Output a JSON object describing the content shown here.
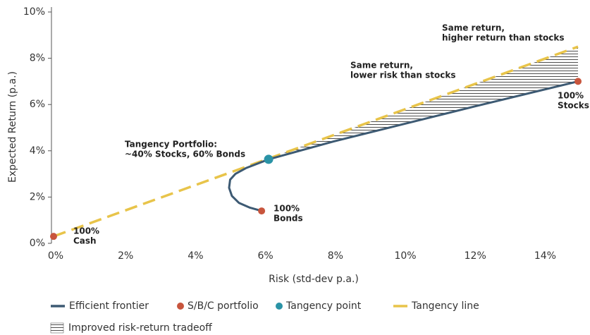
{
  "chart_data": {
    "type": "line",
    "xlabel": "Risk (std-dev p.a.)",
    "ylabel": "Expected Return (p.a.)",
    "xlim": [
      0,
      15
    ],
    "ylim": [
      0,
      10
    ],
    "xticks": [
      {
        "value": 0,
        "label": "0%"
      },
      {
        "value": 2,
        "label": "2%"
      },
      {
        "value": 4,
        "label": "4%"
      },
      {
        "value": 6,
        "label": "6%"
      },
      {
        "value": 8,
        "label": "8%"
      },
      {
        "value": 10,
        "label": "10%"
      },
      {
        "value": 12,
        "label": "12%"
      },
      {
        "value": 14,
        "label": "14%"
      }
    ],
    "yticks": [
      {
        "value": 0,
        "label": "0%"
      },
      {
        "value": 2,
        "label": "2%"
      },
      {
        "value": 4,
        "label": "4%"
      },
      {
        "value": 6,
        "label": "6%"
      },
      {
        "value": 8,
        "label": "8%"
      },
      {
        "value": 10,
        "label": "10%"
      }
    ],
    "series": [
      {
        "name": "Efficient frontier",
        "kind": "line",
        "color": "#3d5a73",
        "x": [
          5.95,
          5.6,
          5.3,
          5.1,
          5.02,
          5.05,
          5.2,
          5.5,
          6.15,
          8,
          10,
          12,
          15
        ],
        "values": [
          1.4,
          1.55,
          1.75,
          2.05,
          2.4,
          2.75,
          3.0,
          3.25,
          3.63,
          4.4,
          5.15,
          5.9,
          7.0
        ]
      },
      {
        "name": "S/B/C portfolio",
        "kind": "point",
        "color": "#c8553d",
        "x": [
          0,
          5.95,
          15
        ],
        "values": [
          0.3,
          1.4,
          7.0
        ]
      },
      {
        "name": "Tangency point",
        "kind": "point",
        "color": "#2a93a6",
        "x": [
          6.15
        ],
        "values": [
          3.63
        ]
      },
      {
        "name": "Tangency line",
        "kind": "dashed",
        "color": "#e8c44a",
        "x": [
          0,
          15
        ],
        "values": [
          0.3,
          8.5
        ]
      }
    ],
    "region_legend": "Improved risk-return tradeoff",
    "annotations": [
      {
        "lines": [
          "Same return,",
          "higher return than stocks"
        ]
      },
      {
        "lines": [
          "Same return,",
          "lower risk than stocks"
        ]
      },
      {
        "lines": [
          "Tangency Portfolio:",
          "~40% Stocks, 60% Bonds"
        ]
      },
      {
        "lines": [
          "100%",
          "Bonds"
        ]
      },
      {
        "lines": [
          "100%",
          "Cash"
        ]
      },
      {
        "lines": [
          "100%",
          "Stocks"
        ]
      }
    ]
  }
}
